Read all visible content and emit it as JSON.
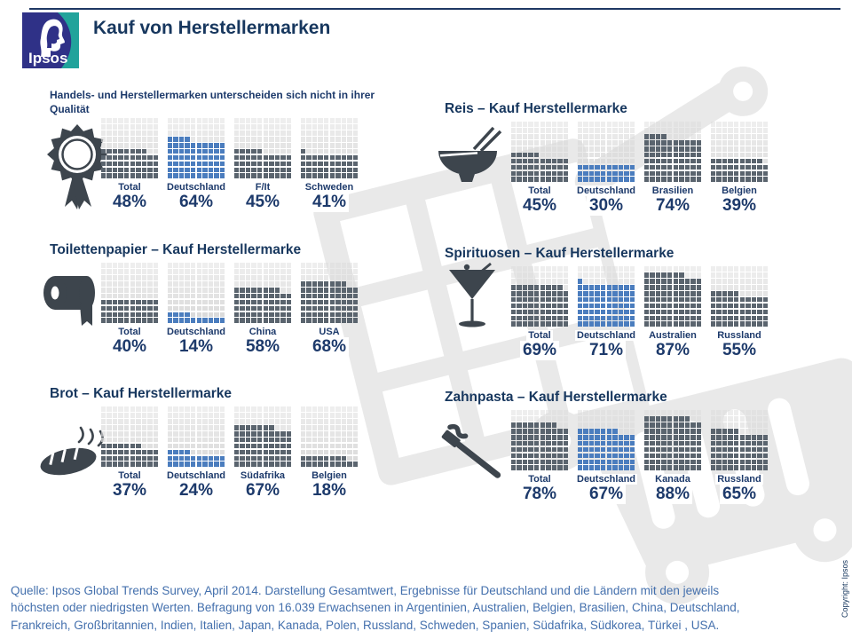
{
  "header": {
    "title": "Kauf von Herstellermarken",
    "logo_text": "Ipsos"
  },
  "colors": {
    "navy": "#17375e",
    "label_navy": "#1d3a6b",
    "bar_gray": "#5a646e",
    "bar_blue": "#4b7dbe",
    "bar_empty": "#d9d9d9",
    "footer_blue": "#4470ad",
    "icon_gray": "#3d454d",
    "logo_navy": "#2f3187",
    "logo_teal": "#21a39b",
    "watermark_gray": "#e9e9e9"
  },
  "chart_data": [
    {
      "type": "waffle",
      "title": "Handels- und Herstellermarken unterscheiden sich nicht in ihrer Qualität",
      "icon": "award-rosette-icon",
      "unit": "%",
      "grid": "10x10, 1 square = 1%",
      "categories": [
        "Total",
        "Deutschland",
        "F/It",
        "Schweden"
      ],
      "values": [
        48,
        64,
        45,
        41
      ],
      "highlight": "Deutschland",
      "highlight_index": 1
    },
    {
      "type": "waffle",
      "title": "Reis – Kauf Herstellermarke",
      "icon": "rice-bowl-icon",
      "unit": "%",
      "grid": "10x10, 1 square = 1%",
      "categories": [
        "Total",
        "Deutschland",
        "Brasilien",
        "Belgien"
      ],
      "values": [
        45,
        30,
        74,
        39
      ],
      "highlight": "Deutschland",
      "highlight_index": 1
    },
    {
      "type": "waffle",
      "title": "Toilettenpapier – Kauf Herstellermarke",
      "icon": "toilet-paper-icon",
      "unit": "%",
      "grid": "10x10, 1 square = 1%",
      "categories": [
        "Total",
        "Deutschland",
        "China",
        "USA"
      ],
      "values": [
        40,
        14,
        58,
        68
      ],
      "highlight": "Deutschland",
      "highlight_index": 1
    },
    {
      "type": "waffle",
      "title": "Spirituosen – Kauf Herstellermarke",
      "icon": "martini-glass-icon",
      "unit": "%",
      "grid": "10x10, 1 square = 1%",
      "categories": [
        "Total",
        "Deutschland",
        "Australien",
        "Russland"
      ],
      "values": [
        69,
        71,
        87,
        55
      ],
      "highlight": "Deutschland",
      "highlight_index": 1
    },
    {
      "type": "waffle",
      "title": "Brot – Kauf Herstellermarke",
      "icon": "bread-icon",
      "unit": "%",
      "grid": "10x10, 1 square = 1%",
      "categories": [
        "Total",
        "Deutschland",
        "Südafrika",
        "Belgien"
      ],
      "values": [
        37,
        24,
        67,
        18
      ],
      "highlight": "Deutschland",
      "highlight_index": 1
    },
    {
      "type": "waffle",
      "title": "Zahnpasta – Kauf Herstellermarke",
      "icon": "toothbrush-icon",
      "unit": "%",
      "grid": "10x10, 1 square = 1%",
      "categories": [
        "Total",
        "Deutschland",
        "Kanada",
        "Russland"
      ],
      "values": [
        78,
        67,
        88,
        65
      ],
      "highlight": "Deutschland",
      "highlight_index": 1
    }
  ],
  "footer": {
    "lines": [
      "Quelle:  Ipsos Global Trends Survey, April  2014. Darstellung Gesamtwert, Ergebnisse für Deutschland und die Ländern mit den jeweils",
      "höchsten oder niedrigsten Werten.  Befragung von 16.039 Erwachsenen in Argentinien,  Australien, Belgien, Brasilien, China, Deutschland,",
      "Frankreich, Großbritannien, Indien, Italien, Japan, Kanada, Polen, Russland, Schweden, Spanien, Südafrika, Südkorea, Türkei , USA."
    ]
  },
  "copyright": "Copyright: Ipsos"
}
